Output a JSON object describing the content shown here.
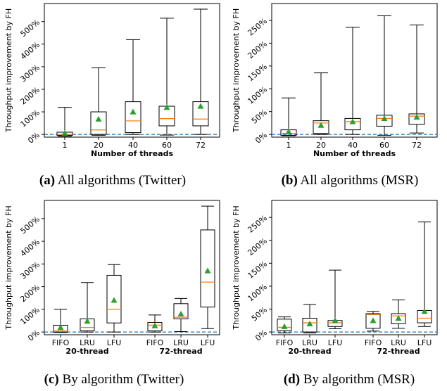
{
  "chart_data": [
    {
      "type": "box",
      "caption_tag": "(a)",
      "caption_text": "All algorithms (Twitter)",
      "ylabel": "Throughput improvement by FH",
      "xlabel": "Number of threads",
      "ylim": [
        -12,
        580
      ],
      "yticks": [
        0,
        100,
        200,
        300,
        400,
        500
      ],
      "ytick_labels": [
        "0%",
        "100%",
        "200%",
        "300%",
        "400%",
        "500%"
      ],
      "groups": [],
      "boxes": [
        {
          "label": "1",
          "wmin": -8,
          "q1": -4,
          "median": 0,
          "q3": 10,
          "wmax": 120,
          "mean": 6
        },
        {
          "label": "20",
          "wmin": -4,
          "q1": 0,
          "median": 20,
          "q3": 100,
          "wmax": 295,
          "mean": 68
        },
        {
          "label": "40",
          "wmin": 0,
          "q1": 8,
          "median": 60,
          "q3": 145,
          "wmax": 420,
          "mean": 100
        },
        {
          "label": "60",
          "wmin": -3,
          "q1": 38,
          "median": 70,
          "q3": 125,
          "wmax": 515,
          "mean": 120
        },
        {
          "label": "72",
          "wmin": 0,
          "q1": 38,
          "median": 68,
          "q3": 145,
          "wmax": 555,
          "mean": 125
        }
      ],
      "baseline": 0
    },
    {
      "type": "box",
      "caption_tag": "(b)",
      "caption_text": "All algorithms (MSR)",
      "ylabel": "Throughput improvement by FH",
      "xlabel": "Number of threads",
      "ylim": [
        -6,
        287
      ],
      "yticks": [
        0,
        50,
        100,
        150,
        200,
        250
      ],
      "ytick_labels": [
        "0%",
        "50%",
        "100%",
        "150%",
        "200%",
        "250%"
      ],
      "groups": [],
      "boxes": [
        {
          "label": "1",
          "wmin": -3,
          "q1": -2,
          "median": 2,
          "q3": 10,
          "wmax": 80,
          "mean": 6
        },
        {
          "label": "20",
          "wmin": 0,
          "q1": 2,
          "median": 25,
          "q3": 30,
          "wmax": 135,
          "mean": 20
        },
        {
          "label": "40",
          "wmin": 0,
          "q1": 10,
          "median": 28,
          "q3": 35,
          "wmax": 235,
          "mean": 28
        },
        {
          "label": "60",
          "wmin": -2,
          "q1": 18,
          "median": 35,
          "q3": 42,
          "wmax": 260,
          "mean": 35
        },
        {
          "label": "72",
          "wmin": 3,
          "q1": 22,
          "median": 40,
          "q3": 45,
          "wmax": 240,
          "mean": 38
        }
      ],
      "baseline": 0
    },
    {
      "type": "box",
      "caption_tag": "(c)",
      "caption_text": "By algorithm (Twitter)",
      "ylabel": "Throughput improvement by FH",
      "xlabel": "",
      "ylim": [
        -12,
        580
      ],
      "yticks": [
        0,
        100,
        200,
        300,
        400,
        500
      ],
      "ytick_labels": [
        "0%",
        "100%",
        "200%",
        "300%",
        "400%",
        "500%"
      ],
      "groups": [
        "20-thread",
        "72-thread"
      ],
      "boxes": [
        {
          "label": "FIFO",
          "wmin": -2,
          "q1": 0,
          "median": 5,
          "q3": 30,
          "wmax": 100,
          "mean": 20
        },
        {
          "label": "LRU",
          "wmin": 0,
          "q1": 5,
          "median": 20,
          "q3": 58,
          "wmax": 218,
          "mean": 48
        },
        {
          "label": "LFU",
          "wmin": 0,
          "q1": 40,
          "median": 100,
          "q3": 250,
          "wmax": 297,
          "mean": 140
        },
        {
          "label": "FIFO",
          "wmin": 0,
          "q1": 5,
          "median": 30,
          "q3": 42,
          "wmax": 75,
          "mean": 28
        },
        {
          "label": "LRU",
          "wmin": 2,
          "q1": 58,
          "median": 65,
          "q3": 125,
          "wmax": 148,
          "mean": 80
        },
        {
          "label": "LFU",
          "wmin": 15,
          "q1": 110,
          "median": 220,
          "q3": 450,
          "wmax": 555,
          "mean": 270
        }
      ],
      "baseline": 0
    },
    {
      "type": "box",
      "caption_tag": "(d)",
      "caption_text": "By algorithm (MSR)",
      "ylabel": "Throughput improvement by FH",
      "xlabel": "",
      "ylim": [
        -6,
        287
      ],
      "yticks": [
        0,
        50,
        100,
        150,
        200,
        250
      ],
      "ytick_labels": [
        "0%",
        "50%",
        "100%",
        "150%",
        "200%",
        "250%"
      ],
      "groups": [
        "20-thread",
        "72-thread"
      ],
      "boxes": [
        {
          "label": "FIFO",
          "wmin": -2,
          "q1": 3,
          "median": 10,
          "q3": 28,
          "wmax": 33,
          "mean": 12
        },
        {
          "label": "LRU",
          "wmin": -2,
          "q1": 0,
          "median": 20,
          "q3": 30,
          "wmax": 60,
          "mean": 18
        },
        {
          "label": "LFU",
          "wmin": 7,
          "q1": 12,
          "median": 20,
          "q3": 25,
          "wmax": 135,
          "mean": 25
        },
        {
          "label": "FIFO",
          "wmin": 2,
          "q1": 8,
          "median": 38,
          "q3": 40,
          "wmax": 45,
          "mean": 25
        },
        {
          "label": "LRU",
          "wmin": 8,
          "q1": 18,
          "median": 35,
          "q3": 40,
          "wmax": 70,
          "mean": 30
        },
        {
          "label": "LFU",
          "wmin": 12,
          "q1": 20,
          "median": 30,
          "q3": 47,
          "wmax": 240,
          "mean": 45
        }
      ],
      "baseline": 0
    }
  ]
}
